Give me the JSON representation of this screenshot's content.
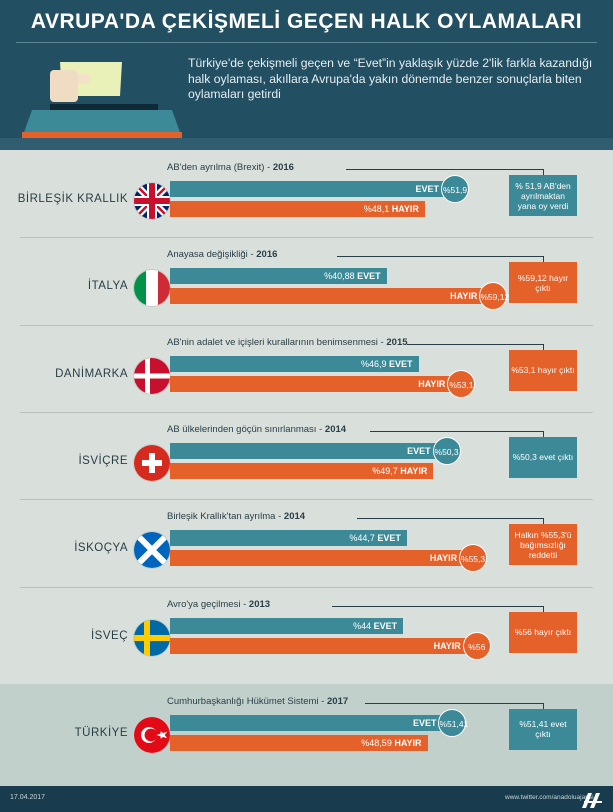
{
  "header": {
    "title": "AVRUPA'DA ÇEKİŞMELİ GEÇEN HALK OYLAMALARI",
    "subtitle": "Türkiye'de çekişmeli geçen ve “Evet”in yaklaşık yüzde 2'lik farkla kazandığı halk oylaması, akıllara Avrupa'da yakın dönemde benzer sonuçlarla biten oylamaları getirdi"
  },
  "labels": {
    "evet": "EVET",
    "hayir": "HAYIR"
  },
  "colors": {
    "evet": "#3c8a98",
    "hayir": "#e4612a",
    "header": "#234f63"
  },
  "votes": [
    {
      "country": "BİRLEŞİK KRALLIK",
      "flag": "uk-flag",
      "vote_label": "AB'den ayrılma (Brexit)",
      "year": "2016",
      "evet_pct": 51.9,
      "hayir_pct": 48.1,
      "evet_text": "%51,9",
      "hayir_text": "%48,1",
      "winner": "evet",
      "result": "% 51,9 AB'den ayrılmaktan yana oy verdi"
    },
    {
      "country": "İTALYA",
      "flag": "italy-flag",
      "vote_label": "Anayasa değişikliği",
      "year": "2016",
      "evet_pct": 40.88,
      "hayir_pct": 59.12,
      "evet_text": "%40,88",
      "hayir_text": "%59,12",
      "winner": "hayir",
      "result": "%59,12 hayır çıktı"
    },
    {
      "country": "DANİMARKA",
      "flag": "denmark-flag",
      "vote_label": "AB'nin adalet ve içişleri kurallarının benimsenmesi",
      "year": "2015",
      "evet_pct": 46.9,
      "hayir_pct": 53.1,
      "evet_text": "%46,9",
      "hayir_text": "%53,1",
      "winner": "hayir",
      "result": "%53,1 hayır çıktı"
    },
    {
      "country": "İSVİÇRE",
      "flag": "switzerland-flag",
      "vote_label": "AB ülkelerinden göçün sınırlanması",
      "year": "2014",
      "evet_pct": 50.3,
      "hayir_pct": 49.7,
      "evet_text": "%50,3",
      "hayir_text": "%49,7",
      "winner": "evet",
      "result": "%50,3 evet çıktı"
    },
    {
      "country": "İSKOÇYA",
      "flag": "scotland-flag",
      "vote_label": "Birleşik Krallık'tan ayrılma",
      "year": "2014",
      "evet_pct": 44.7,
      "hayir_pct": 55.3,
      "evet_text": "%44,7",
      "hayir_text": "%55,3",
      "winner": "hayir",
      "result": "Halkın %55,3'ü bağımsızlığı reddetti"
    },
    {
      "country": "İSVEÇ",
      "flag": "sweden-flag",
      "vote_label": "Avro'ya geçilmesi",
      "year": "2013",
      "evet_pct": 44,
      "hayir_pct": 56,
      "evet_text": "%44",
      "hayir_text": "%56",
      "winner": "hayir",
      "result": "%56 hayır çıktı"
    },
    {
      "country": "TÜRKİYE",
      "flag": "turkey-flag",
      "vote_label": "Cumhurbaşkanlığı Hükümet Sistemi",
      "year": "2017",
      "evet_pct": 51.41,
      "hayir_pct": 48.59,
      "evet_text": "%51,41",
      "hayir_text": "%48,59",
      "winner": "evet",
      "result": "%51,41 evet çıktı"
    }
  ],
  "footer": {
    "date": "17.04.2017",
    "url": "www.twitter.com/anadoluajansi",
    "logo": "anadolu-agency-logo"
  }
}
